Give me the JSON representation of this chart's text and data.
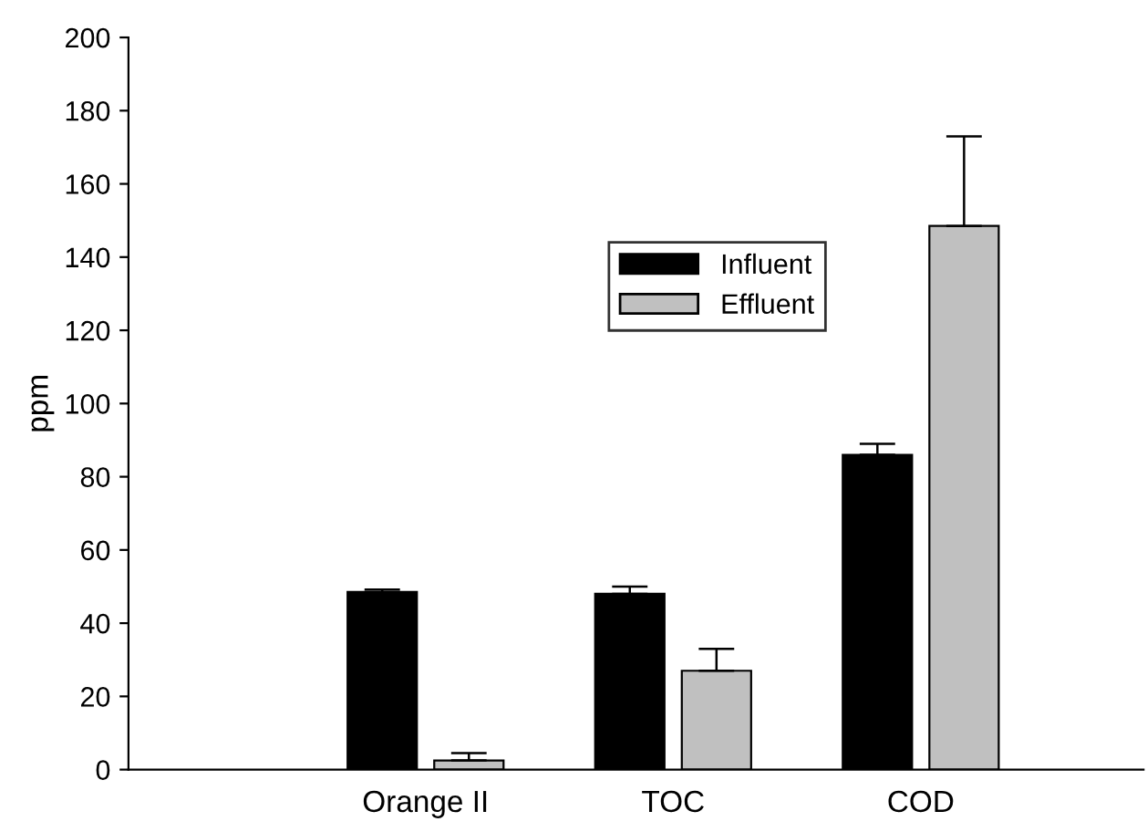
{
  "chart_data": {
    "type": "bar",
    "ylabel": "ppm",
    "categories": [
      "Orange II",
      "TOC",
      "COD"
    ],
    "series": [
      {
        "name": "Influent",
        "color": "#000000",
        "values": [
          48.5,
          48,
          86
        ],
        "errors": [
          [
            48.5,
            49.2
          ],
          [
            48,
            50
          ],
          [
            86,
            89
          ]
        ]
      },
      {
        "name": "Effluent",
        "color": "#c0c0c0",
        "values": [
          2.5,
          27,
          148.5
        ],
        "errors": [
          [
            2.5,
            4.5
          ],
          [
            27,
            33
          ],
          [
            148.5,
            173
          ]
        ]
      }
    ],
    "ylim": [
      0,
      200
    ],
    "yticks": [
      0,
      20,
      40,
      60,
      80,
      100,
      120,
      140,
      160,
      180,
      200
    ],
    "grid": false,
    "legend": "center"
  }
}
